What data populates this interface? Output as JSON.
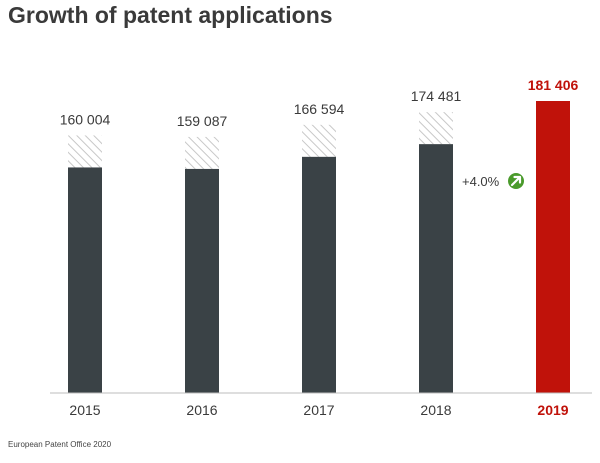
{
  "chart_data": {
    "type": "bar",
    "title": "Growth of patent applications",
    "categories": [
      "2015",
      "2016",
      "2017",
      "2018",
      "2019"
    ],
    "values": [
      160004,
      159087,
      166594,
      174481,
      181406
    ],
    "value_labels": [
      "160 004",
      "159 087",
      "166 594",
      "174 481",
      "181 406"
    ],
    "highlight_index": 4,
    "annotation": "+4.0%",
    "annotation_icon": "up-right-arrow-icon",
    "hatched_top_segments": true,
    "legend": "none",
    "grid": false,
    "xlabel": "",
    "ylabel": ""
  },
  "colors": {
    "bar": "#3a4246",
    "highlight_bar": "#c0120a",
    "highlight_text": "#c0120a",
    "label_text": "#3a3a3a",
    "hatch": "#c8c8c8",
    "annotation_icon_bg": "#4a9a2c",
    "baseline": "#bcbcbc"
  },
  "source": "European Patent Office 2020"
}
